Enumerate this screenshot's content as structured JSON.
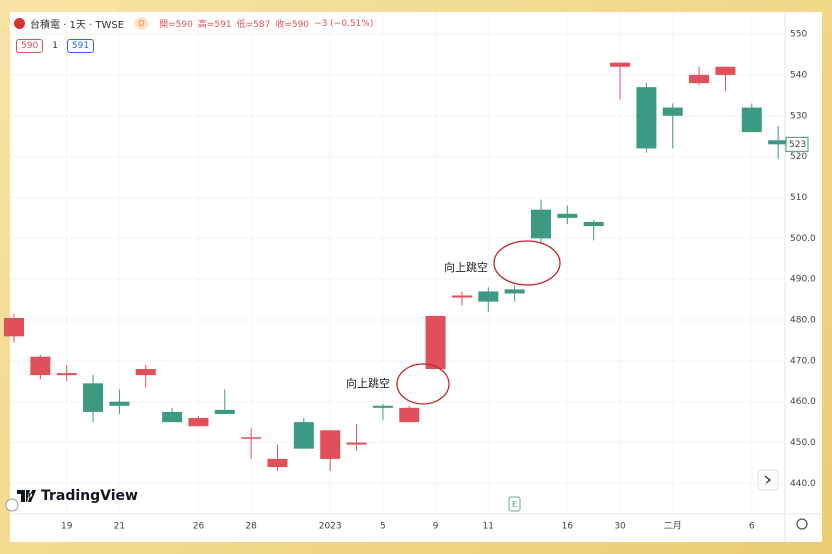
{
  "chart_data": {
    "type": "candlestick",
    "symbol": "台積電 · 1天 · TWSE",
    "interval_badge": "D",
    "ohlc_legend": [
      "開=590",
      "高=591",
      "低=587",
      "收=590",
      "−3 (−0.51%)"
    ],
    "order_row": [
      "590",
      "1",
      "591"
    ],
    "categories": [
      null,
      null,
      "19",
      null,
      "21",
      null,
      null,
      "26",
      null,
      "28",
      null,
      null,
      "2023",
      null,
      "5",
      null,
      "9",
      null,
      "11",
      null,
      null,
      "16",
      null,
      "30",
      null,
      "二月",
      null,
      null,
      "6",
      null
    ],
    "open": [
      476,
      466.5,
      466.5,
      464.5,
      460,
      466.5,
      457.5,
      454,
      458,
      451,
      444,
      455,
      446,
      449.5,
      459,
      455,
      468,
      485.5,
      487,
      487.5,
      507,
      506,
      504,
      542,
      537,
      532,
      538,
      540,
      532,
      524
    ],
    "high": [
      481.5,
      471.5,
      469,
      466.5,
      463,
      469,
      458.5,
      456.5,
      463,
      453.5,
      449.5,
      456,
      453,
      454.5,
      459.5,
      459,
      481,
      487,
      488,
      488.5,
      509.5,
      508,
      504.5,
      543,
      538,
      533,
      542,
      542,
      533,
      527.5
    ],
    "low": [
      474.5,
      465.5,
      465,
      455,
      457,
      463.5,
      455,
      454,
      457,
      446,
      443,
      448.5,
      443,
      448,
      455.5,
      455,
      468,
      483.5,
      482,
      484.5,
      499,
      503.5,
      499.5,
      534,
      521,
      522,
      537.5,
      536,
      526,
      519.5
    ],
    "close": [
      480.5,
      471,
      467,
      457.5,
      459,
      468,
      455,
      456,
      457,
      451.3,
      446,
      448.5,
      453,
      450,
      458.5,
      458.5,
      481,
      486,
      484.5,
      486.5,
      500,
      505,
      503,
      543,
      522,
      530,
      540,
      542,
      526,
      523
    ],
    "up_color": "#e0505a",
    "down_color": "#3d9a82",
    "ylim": [
      433,
      555.4
    ],
    "yticks": [
      {
        "value": 440,
        "label": "440.0"
      },
      {
        "value": 450,
        "label": "450.0"
      },
      {
        "value": 460,
        "label": "460.0"
      },
      {
        "value": 470,
        "label": "470.0"
      },
      {
        "value": 480,
        "label": "480.0"
      },
      {
        "value": 490,
        "label": "490.0"
      },
      {
        "value": 500,
        "label": "500.0"
      },
      510,
      520,
      530,
      540,
      550
    ],
    "grid": true,
    "last_price": 523,
    "annotations": [
      "向上跳空",
      "向上跳空"
    ],
    "event_marker": "E",
    "branding": "TradingView"
  }
}
